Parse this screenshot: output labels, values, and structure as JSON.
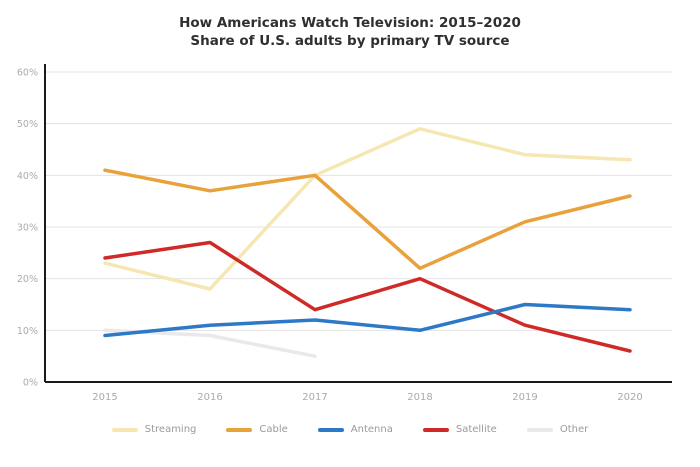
{
  "title": {
    "line1": "How Americans Watch Television: 2015–2020",
    "line2": "Share of U.S. adults by primary TV source"
  },
  "colors": {
    "axis": "#1a1a1a",
    "gridline": "#e3e3e3",
    "tick_label": "#ababab"
  },
  "chart_data": {
    "type": "line",
    "x": [
      "2015",
      "2016",
      "2017",
      "2018",
      "2019",
      "2020"
    ],
    "yticks": [
      "0%",
      "10%",
      "20%",
      "30%",
      "40%",
      "50%",
      "60%"
    ],
    "ytick_values": [
      0,
      10,
      20,
      30,
      40,
      50,
      60
    ],
    "ylim": [
      0,
      60
    ],
    "grid": true,
    "legend_position": "bottom",
    "series": [
      {
        "name": "Streaming",
        "color": "#F6E7B2",
        "values": [
          23,
          18,
          40,
          49,
          44,
          43
        ]
      },
      {
        "name": "Cable",
        "color": "#E9A13B",
        "values": [
          41,
          37,
          40,
          22,
          31,
          36
        ]
      },
      {
        "name": "Antenna",
        "color": "#2E79C7",
        "values": [
          9,
          11,
          12,
          10,
          15,
          14
        ]
      },
      {
        "name": "Satellite",
        "color": "#CF2A27",
        "values": [
          24,
          27,
          14,
          20,
          11,
          6
        ]
      },
      {
        "name": "Other",
        "color": "#E9E9E9",
        "values": [
          10,
          9,
          5,
          null,
          null,
          null
        ]
      }
    ]
  }
}
